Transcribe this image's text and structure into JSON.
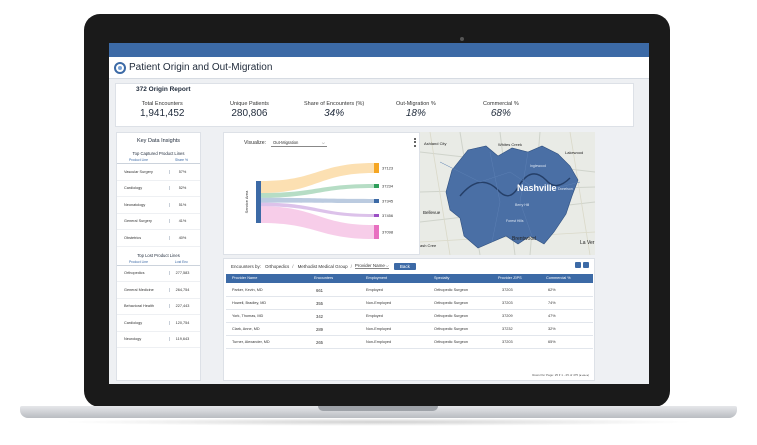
{
  "app": {
    "title": "Patient Origin and Out-Migration",
    "report_title": "372 Origin Report"
  },
  "kpis": [
    {
      "label": "Total Encounters",
      "value": "1,941,452"
    },
    {
      "label": "Unique Patients",
      "value": "280,806"
    },
    {
      "label": "Share of Encounters (%)",
      "value": "34%"
    },
    {
      "label": "Out-Migration %",
      "value": "18%"
    },
    {
      "label": "Commercial %",
      "value": "68%"
    }
  ],
  "insights": {
    "title": "Key Data Insights",
    "captured": {
      "title": "Top Captured Product Lines",
      "col_product": "Product Line",
      "col_value": "Share %",
      "rows": [
        {
          "label": "Vascular Surgery",
          "value": "57%"
        },
        {
          "label": "Cardiology",
          "value": "52%"
        },
        {
          "label": "Neonatology",
          "value": "51%"
        },
        {
          "label": "General Surgery",
          "value": "41%"
        },
        {
          "label": "Obstetrics",
          "value": "40%"
        }
      ]
    },
    "lost": {
      "title": "Top Lost Product Lines",
      "col_product": "Product Line",
      "col_value": "Lost Enc",
      "rows": [
        {
          "label": "Orthopedics",
          "value": "277,583"
        },
        {
          "label": "General Medicine",
          "value": "264,754"
        },
        {
          "label": "Behavioral Health",
          "value": "227,443"
        },
        {
          "label": "Cardiology",
          "value": "120,754"
        },
        {
          "label": "Neurology",
          "value": "119,643"
        }
      ]
    }
  },
  "visualize": {
    "label": "Visualize:",
    "selected": "Out-Migration",
    "axis_label": "Service Area",
    "flows": [
      {
        "value": "37123",
        "color": "#f5a623"
      },
      {
        "value": "37234",
        "color": "#2e9e5a"
      },
      {
        "value": "37345",
        "color": "#3c6aa6"
      },
      {
        "value": "37456",
        "color": "#9b4fc4"
      },
      {
        "value": "37098",
        "color": "#e86fc0"
      }
    ],
    "source_color": "#3c6aa6"
  },
  "map": {
    "labels": {
      "nashville": "Nashville",
      "ashland_city": "Ashland City",
      "whites_creek": "Whites Creek",
      "lakewood": "Lakewood",
      "inglewood": "Inglewood",
      "berry_hill": "Berry Hill",
      "forest_hills": "Forest Hills",
      "brentwood": "Brentwood",
      "la_vergne": "La Ver",
      "bellevue": "Bellevue",
      "ash_creek": "ash Cree",
      "donelson": "Donelson"
    },
    "fill_color": "#4a6fa5"
  },
  "table": {
    "encounters_by_label": "Encounters by:",
    "breadcrumb": [
      "Orthopedics",
      "Methodist Medical Group"
    ],
    "level_select": "Provider Name",
    "back_label": "Back",
    "columns": [
      "Provider Name",
      "Encounters",
      "Employment",
      "Specialty",
      "Provider ZIPS",
      "Commercial %"
    ],
    "rows": [
      [
        "Parker, Kevin, MD",
        "661",
        "Employed",
        "Orthopedic Surgeon",
        "37203",
        "62%"
      ],
      [
        "Howell, Bradley, MD",
        "355",
        "Non-Employed",
        "Orthopedic Surgeon",
        "37203",
        "74%"
      ],
      [
        "York, Thomas, MD",
        "342",
        "Employed",
        "Orthopedic Surgeon",
        "37209",
        "47%"
      ],
      [
        "Clark, Anne, MD",
        "289",
        "Non-Employed",
        "Orthopedic Surgeon",
        "37232",
        "32%"
      ],
      [
        "Turner, Alexander, MD",
        "265",
        "Non-Employed",
        "Orthopedic Surgeon",
        "37203",
        "65%"
      ]
    ],
    "footer": "Rows Per Page: 25  ▾   1 - 25 of 475   |◂  ◂  ▸  ▸|"
  }
}
